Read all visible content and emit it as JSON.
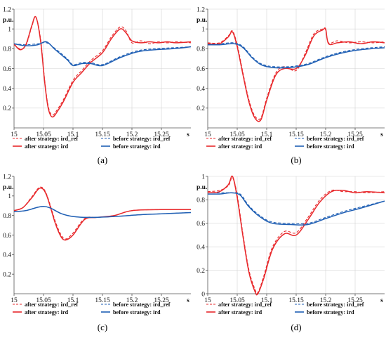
{
  "chart_data": [
    {
      "type": "line",
      "caption": "(a)",
      "ylabel": "p.u.",
      "xlabel": "s",
      "xlim": [
        15,
        15.3
      ],
      "ylim": [
        0,
        1.2
      ],
      "x_ticks": [
        "15",
        "15.05",
        "15.1",
        "15.15",
        "15.2",
        "15.25"
      ],
      "y_ticks": [
        "0.2",
        "0.4",
        "0.6",
        "0.8",
        "1",
        "1.2"
      ],
      "grid": true,
      "legend_position": "bottom",
      "series": [
        {
          "name": "after strategy: ird_ref",
          "color": "#e8282b",
          "dashed": true,
          "x": [
            15,
            15.01,
            15.02,
            15.03,
            15.037,
            15.045,
            15.052,
            15.058,
            15.065,
            15.075,
            15.085,
            15.1,
            15.115,
            15.13,
            15.15,
            15.165,
            15.18,
            15.19,
            15.2,
            15.215,
            15.23,
            15.245,
            15.26,
            15.275,
            15.3
          ],
          "y": [
            0.84,
            0.8,
            0.83,
            1.02,
            1.12,
            0.9,
            0.48,
            0.22,
            0.13,
            0.2,
            0.3,
            0.48,
            0.58,
            0.68,
            0.78,
            0.92,
            1.02,
            0.98,
            0.86,
            0.88,
            0.85,
            0.87,
            0.86,
            0.87,
            0.86
          ]
        },
        {
          "name": "before strategy: ird_ref",
          "color": "#1f5fb4",
          "dashed": true,
          "x": [
            15,
            15.02,
            15.04,
            15.055,
            15.07,
            15.09,
            15.1,
            15.115,
            15.13,
            15.15,
            15.18,
            15.21,
            15.24,
            15.27,
            15.3
          ],
          "y": [
            0.85,
            0.84,
            0.85,
            0.86,
            0.8,
            0.7,
            0.64,
            0.66,
            0.66,
            0.64,
            0.72,
            0.78,
            0.8,
            0.81,
            0.82
          ]
        },
        {
          "name": "after strategy: ird",
          "color": "#e8282b",
          "dashed": false,
          "x": [
            15,
            15.01,
            15.02,
            15.03,
            15.037,
            15.045,
            15.052,
            15.058,
            15.065,
            15.075,
            15.085,
            15.1,
            15.115,
            15.13,
            15.15,
            15.165,
            15.18,
            15.19,
            15.2,
            15.215,
            15.23,
            15.245,
            15.26,
            15.275,
            15.3
          ],
          "y": [
            0.85,
            0.79,
            0.84,
            1.03,
            1.12,
            0.88,
            0.46,
            0.2,
            0.11,
            0.18,
            0.28,
            0.46,
            0.56,
            0.66,
            0.76,
            0.9,
            1.0,
            0.96,
            0.88,
            0.86,
            0.87,
            0.86,
            0.87,
            0.86,
            0.87
          ]
        },
        {
          "name": "before strategy: ird",
          "color": "#1f5fb4",
          "dashed": false,
          "x": [
            15,
            15.02,
            15.04,
            15.055,
            15.07,
            15.09,
            15.1,
            15.115,
            15.13,
            15.15,
            15.18,
            15.21,
            15.24,
            15.27,
            15.3
          ],
          "y": [
            0.85,
            0.83,
            0.84,
            0.87,
            0.79,
            0.69,
            0.63,
            0.65,
            0.65,
            0.63,
            0.71,
            0.77,
            0.79,
            0.8,
            0.82
          ]
        }
      ]
    },
    {
      "type": "line",
      "caption": "(b)",
      "ylabel": "p.u.",
      "xlabel": "s",
      "xlim": [
        15,
        15.3
      ],
      "ylim": [
        0,
        1.2
      ],
      "x_ticks": [
        "15",
        "15.05",
        "15.1",
        "15.15",
        "15.2",
        "15.25"
      ],
      "y_ticks": [
        "0.2",
        "0.4",
        "0.6",
        "0.8",
        "1",
        "1.2"
      ],
      "grid": true,
      "legend_position": "bottom",
      "series": [
        {
          "name": "after strategy: ird_ref",
          "color": "#e8282b",
          "dashed": true,
          "x": [
            15,
            15.02,
            15.035,
            15.042,
            15.05,
            15.06,
            15.07,
            15.08,
            15.09,
            15.1,
            15.115,
            15.13,
            15.15,
            15.165,
            15.18,
            15.195,
            15.2,
            15.205,
            15.22,
            15.24,
            15.26,
            15.28,
            15.3
          ],
          "y": [
            0.86,
            0.86,
            0.93,
            0.98,
            0.84,
            0.55,
            0.28,
            0.12,
            0.1,
            0.3,
            0.55,
            0.62,
            0.58,
            0.75,
            0.95,
            1.0,
            0.99,
            0.86,
            0.88,
            0.86,
            0.87,
            0.86,
            0.87
          ]
        },
        {
          "name": "before strategy: ird_ref",
          "color": "#1f5fb4",
          "dashed": true,
          "x": [
            15,
            15.02,
            15.045,
            15.06,
            15.075,
            15.09,
            15.11,
            15.14,
            15.17,
            15.2,
            15.23,
            15.26,
            15.3
          ],
          "y": [
            0.85,
            0.85,
            0.86,
            0.82,
            0.72,
            0.65,
            0.62,
            0.62,
            0.65,
            0.72,
            0.77,
            0.8,
            0.82
          ]
        },
        {
          "name": "after strategy: ird",
          "color": "#e8282b",
          "dashed": false,
          "x": [
            15,
            15.02,
            15.035,
            15.042,
            15.05,
            15.06,
            15.07,
            15.08,
            15.09,
            15.1,
            15.115,
            15.13,
            15.15,
            15.165,
            15.18,
            15.195,
            15.2,
            15.205,
            15.22,
            15.24,
            15.26,
            15.28,
            15.3
          ],
          "y": [
            0.85,
            0.85,
            0.92,
            0.97,
            0.82,
            0.53,
            0.26,
            0.1,
            0.08,
            0.28,
            0.53,
            0.6,
            0.6,
            0.73,
            0.93,
            0.99,
            1.0,
            0.85,
            0.86,
            0.87,
            0.85,
            0.87,
            0.86
          ]
        },
        {
          "name": "before strategy: ird",
          "color": "#1f5fb4",
          "dashed": false,
          "x": [
            15,
            15.02,
            15.045,
            15.06,
            15.075,
            15.09,
            15.11,
            15.14,
            15.17,
            15.2,
            15.23,
            15.26,
            15.3
          ],
          "y": [
            0.84,
            0.84,
            0.85,
            0.81,
            0.71,
            0.64,
            0.61,
            0.61,
            0.64,
            0.71,
            0.76,
            0.79,
            0.81
          ]
        }
      ]
    },
    {
      "type": "line",
      "caption": "(c)",
      "ylabel": "p.u.",
      "xlabel": "s",
      "xlim": [
        15,
        15.3
      ],
      "ylim": [
        0,
        1.2
      ],
      "x_ticks": [
        "15",
        "15.05",
        "15.1",
        "15.15",
        "15.2",
        "15.25"
      ],
      "y_ticks": [
        "0.2",
        "0.4",
        "0.6",
        "0.8",
        "1",
        "1.2"
      ],
      "grid": false,
      "legend_position": "bottom",
      "series": [
        {
          "name": "after strategy: ird_ref",
          "color": "#e8282b",
          "dashed": true,
          "x": [
            15,
            15.015,
            15.03,
            15.044,
            15.055,
            15.07,
            15.08,
            15.088,
            15.1,
            15.12,
            15.14,
            15.17,
            15.2,
            15.25,
            15.3
          ],
          "y": [
            0.85,
            0.88,
            0.99,
            1.09,
            1.02,
            0.74,
            0.6,
            0.56,
            0.62,
            0.77,
            0.78,
            0.8,
            0.85,
            0.86,
            0.86
          ]
        },
        {
          "name": "before strategy: ird_ref",
          "color": "#1f5fb4",
          "dashed": true,
          "x": [
            15,
            15.02,
            15.045,
            15.06,
            15.08,
            15.1,
            15.13,
            15.17,
            15.22,
            15.26,
            15.3
          ],
          "y": [
            0.84,
            0.85,
            0.89,
            0.88,
            0.82,
            0.79,
            0.78,
            0.79,
            0.81,
            0.82,
            0.83
          ]
        },
        {
          "name": "after strategy: ird",
          "color": "#e8282b",
          "dashed": false,
          "x": [
            15,
            15.015,
            15.03,
            15.044,
            15.055,
            15.07,
            15.08,
            15.088,
            15.1,
            15.12,
            15.14,
            15.17,
            15.2,
            15.25,
            15.3
          ],
          "y": [
            0.85,
            0.88,
            0.98,
            1.08,
            1.01,
            0.72,
            0.58,
            0.55,
            0.6,
            0.76,
            0.78,
            0.8,
            0.85,
            0.86,
            0.86
          ]
        },
        {
          "name": "before strategy: ird",
          "color": "#1f5fb4",
          "dashed": false,
          "x": [
            15,
            15.02,
            15.045,
            15.06,
            15.08,
            15.1,
            15.13,
            15.17,
            15.22,
            15.26,
            15.3
          ],
          "y": [
            0.84,
            0.85,
            0.89,
            0.88,
            0.82,
            0.79,
            0.78,
            0.79,
            0.81,
            0.82,
            0.83
          ]
        }
      ]
    },
    {
      "type": "line",
      "caption": "(d)",
      "ylabel": "p.u.",
      "xlabel": "s",
      "xlim": [
        15,
        15.3
      ],
      "ylim": [
        0,
        1.0
      ],
      "x_ticks": [
        "15",
        "15.05",
        "15.1",
        "15.15",
        "15.2",
        "15.25"
      ],
      "y_ticks": [
        "0",
        "0.2",
        "0.4",
        "0.6",
        "0.8",
        "1"
      ],
      "grid": true,
      "legend_position": "bottom",
      "series": [
        {
          "name": "after strategy: ird_ref",
          "color": "#e8282b",
          "dashed": true,
          "x": [
            15,
            15.02,
            15.035,
            15.042,
            15.05,
            15.06,
            15.07,
            15.08,
            15.085,
            15.095,
            15.11,
            15.13,
            15.15,
            15.17,
            15.19,
            15.21,
            15.23,
            15.25,
            15.27,
            15.3
          ],
          "y": [
            0.87,
            0.88,
            0.92,
            0.99,
            0.84,
            0.5,
            0.2,
            0.04,
            0.01,
            0.15,
            0.4,
            0.53,
            0.52,
            0.65,
            0.8,
            0.88,
            0.87,
            0.87,
            0.86,
            0.87
          ]
        },
        {
          "name": "before strategy: ird_ref",
          "color": "#1f5fb4",
          "dashed": true,
          "x": [
            15,
            15.02,
            15.04,
            15.055,
            15.07,
            15.09,
            15.11,
            15.14,
            15.17,
            15.2,
            15.23,
            15.26,
            15.3
          ],
          "y": [
            0.86,
            0.86,
            0.86,
            0.85,
            0.75,
            0.66,
            0.61,
            0.6,
            0.6,
            0.65,
            0.7,
            0.74,
            0.79
          ]
        },
        {
          "name": "after strategy: ird",
          "color": "#e8282b",
          "dashed": false,
          "x": [
            15,
            15.02,
            15.035,
            15.042,
            15.05,
            15.06,
            15.07,
            15.08,
            15.085,
            15.095,
            15.11,
            15.13,
            15.15,
            15.17,
            15.19,
            15.21,
            15.23,
            15.25,
            15.27,
            15.3
          ],
          "y": [
            0.86,
            0.87,
            0.93,
            1.0,
            0.82,
            0.48,
            0.18,
            0.02,
            0.0,
            0.13,
            0.38,
            0.51,
            0.5,
            0.63,
            0.78,
            0.87,
            0.88,
            0.86,
            0.87,
            0.86
          ]
        },
        {
          "name": "before strategy: ird",
          "color": "#1f5fb4",
          "dashed": false,
          "x": [
            15,
            15.02,
            15.04,
            15.055,
            15.07,
            15.09,
            15.11,
            15.14,
            15.17,
            15.2,
            15.23,
            15.26,
            15.3
          ],
          "y": [
            0.85,
            0.85,
            0.86,
            0.84,
            0.74,
            0.65,
            0.6,
            0.59,
            0.59,
            0.64,
            0.69,
            0.73,
            0.79
          ]
        }
      ]
    }
  ]
}
